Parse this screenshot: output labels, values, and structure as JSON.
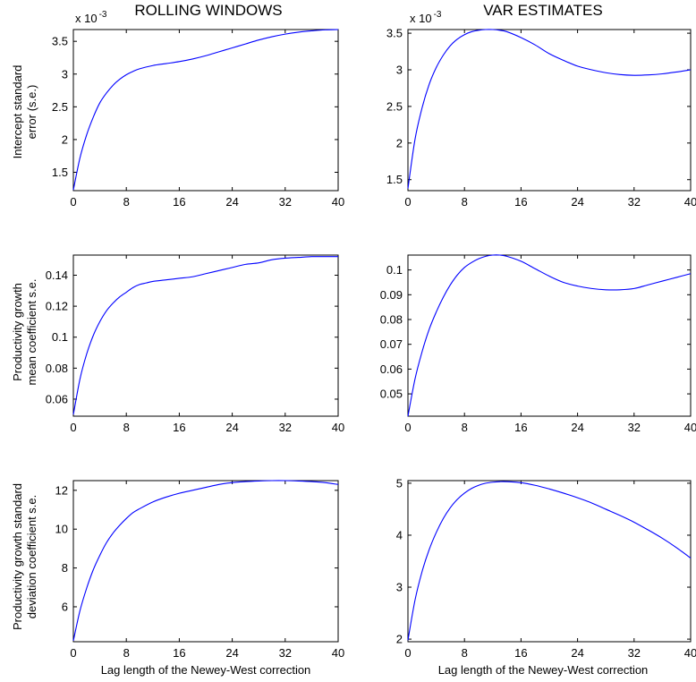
{
  "column_titles": [
    "ROLLING WINDOWS",
    "VAR ESTIMATES"
  ],
  "row_ylabels": [
    [
      "Intercept standard",
      "error (s.e.)"
    ],
    [
      "Productivity growth",
      "mean coefficient s.e."
    ],
    [
      "Productivity growth standard",
      "deviation coefficient s.e."
    ]
  ],
  "xlabel": "Lag length of the Newey-West correction",
  "chart_data": [
    {
      "type": "line",
      "title": "ROLLING WINDOWS",
      "ylabel": "Intercept standard error (s.e.)",
      "xlim": [
        0,
        40
      ],
      "ylim": [
        1.22,
        3.68
      ],
      "exponent_label": "x 10 -3",
      "xticks": [
        "0",
        "8",
        "16",
        "24",
        "32",
        "40"
      ],
      "yticks": [
        {
          "v": 1.5,
          "t": "1.5"
        },
        {
          "v": 2,
          "t": "2"
        },
        {
          "v": 2.5,
          "t": "2.5"
        },
        {
          "v": 3,
          "t": "3"
        },
        {
          "v": 3.5,
          "t": "3.5"
        }
      ],
      "x": [
        0,
        1,
        2,
        3,
        4,
        5,
        6,
        7,
        8,
        9,
        10,
        12,
        14,
        16,
        18,
        20,
        22,
        24,
        26,
        28,
        30,
        32,
        34,
        36,
        38,
        40
      ],
      "y": [
        1.23,
        1.72,
        2.07,
        2.34,
        2.56,
        2.71,
        2.83,
        2.92,
        2.99,
        3.04,
        3.08,
        3.13,
        3.16,
        3.19,
        3.23,
        3.28,
        3.34,
        3.4,
        3.46,
        3.52,
        3.57,
        3.61,
        3.64,
        3.66,
        3.675,
        3.68
      ]
    },
    {
      "type": "line",
      "title": "VAR ESTIMATES",
      "ylabel": "",
      "xlim": [
        0,
        40
      ],
      "ylim": [
        1.35,
        3.55
      ],
      "exponent_label": "x 10 -3",
      "xticks": [
        "0",
        "8",
        "16",
        "24",
        "32",
        "40"
      ],
      "yticks": [
        {
          "v": 1.5,
          "t": "1.5"
        },
        {
          "v": 2,
          "t": "2"
        },
        {
          "v": 2.5,
          "t": "2.5"
        },
        {
          "v": 3,
          "t": "3"
        },
        {
          "v": 3.5,
          "t": "3.5"
        }
      ],
      "x": [
        0,
        1,
        2,
        3,
        4,
        5,
        6,
        7,
        8,
        9,
        10,
        11,
        12,
        13,
        14,
        16,
        18,
        20,
        22,
        24,
        26,
        28,
        30,
        32,
        34,
        36,
        38,
        40
      ],
      "y": [
        1.38,
        2.05,
        2.48,
        2.8,
        3.03,
        3.2,
        3.33,
        3.42,
        3.48,
        3.52,
        3.54,
        3.55,
        3.55,
        3.54,
        3.52,
        3.44,
        3.34,
        3.22,
        3.13,
        3.05,
        3.0,
        2.96,
        2.935,
        2.925,
        2.93,
        2.945,
        2.97,
        3.0
      ]
    },
    {
      "type": "line",
      "title": "",
      "ylabel": "Productivity growth mean coefficient s.e.",
      "xlim": [
        0,
        40
      ],
      "ylim": [
        0.049,
        0.153
      ],
      "exponent_label": "",
      "xticks": [
        "0",
        "8",
        "16",
        "24",
        "32",
        "40"
      ],
      "yticks": [
        {
          "v": 0.06,
          "t": "0.06"
        },
        {
          "v": 0.08,
          "t": "0.08"
        },
        {
          "v": 0.1,
          "t": "0.1"
        },
        {
          "v": 0.12,
          "t": "0.12"
        },
        {
          "v": 0.14,
          "t": "0.14"
        }
      ],
      "x": [
        0,
        1,
        2,
        3,
        4,
        5,
        6,
        7,
        8,
        9,
        10,
        11,
        12,
        14,
        16,
        18,
        20,
        22,
        24,
        26,
        28,
        30,
        32,
        34,
        36,
        38,
        40
      ],
      "y": [
        0.05,
        0.073,
        0.089,
        0.101,
        0.11,
        0.117,
        0.122,
        0.126,
        0.129,
        0.132,
        0.134,
        0.135,
        0.136,
        0.137,
        0.138,
        0.139,
        0.141,
        0.143,
        0.145,
        0.147,
        0.148,
        0.15,
        0.151,
        0.1515,
        0.152,
        0.152,
        0.152
      ]
    },
    {
      "type": "line",
      "title": "",
      "ylabel": "",
      "xlim": [
        0,
        40
      ],
      "ylim": [
        0.041,
        0.106
      ],
      "exponent_label": "",
      "xticks": [
        "0",
        "8",
        "16",
        "24",
        "32",
        "40"
      ],
      "yticks": [
        {
          "v": 0.05,
          "t": "0.05"
        },
        {
          "v": 0.06,
          "t": "0.06"
        },
        {
          "v": 0.07,
          "t": "0.07"
        },
        {
          "v": 0.08,
          "t": "0.08"
        },
        {
          "v": 0.09,
          "t": "0.09"
        },
        {
          "v": 0.1,
          "t": "0.1"
        }
      ],
      "x": [
        0,
        1,
        2,
        3,
        4,
        5,
        6,
        7,
        8,
        9,
        10,
        11,
        12,
        13,
        14,
        16,
        18,
        20,
        22,
        24,
        26,
        28,
        30,
        32,
        34,
        36,
        38,
        40
      ],
      "y": [
        0.041,
        0.056,
        0.067,
        0.076,
        0.083,
        0.089,
        0.094,
        0.098,
        0.101,
        0.103,
        0.1045,
        0.1055,
        0.106,
        0.106,
        0.1055,
        0.1035,
        0.1005,
        0.0975,
        0.095,
        0.0935,
        0.0925,
        0.092,
        0.092,
        0.0925,
        0.094,
        0.0955,
        0.097,
        0.0985
      ]
    },
    {
      "type": "line",
      "title": "",
      "ylabel": "Productivity growth standard deviation coefficient s.e.",
      "xlim": [
        0,
        40
      ],
      "ylim": [
        4.2,
        12.5
      ],
      "exponent_label": "",
      "xticks": [
        "0",
        "8",
        "16",
        "24",
        "32",
        "40"
      ],
      "yticks": [
        {
          "v": 6,
          "t": "6"
        },
        {
          "v": 8,
          "t": "8"
        },
        {
          "v": 10,
          "t": "10"
        },
        {
          "v": 12,
          "t": "12"
        }
      ],
      "x": [
        0,
        1,
        2,
        3,
        4,
        5,
        6,
        7,
        8,
        9,
        10,
        12,
        14,
        16,
        18,
        20,
        22,
        24,
        26,
        28,
        30,
        32,
        34,
        36,
        38,
        40
      ],
      "y": [
        4.25,
        5.8,
        6.95,
        7.9,
        8.65,
        9.3,
        9.8,
        10.2,
        10.55,
        10.85,
        11.05,
        11.4,
        11.65,
        11.85,
        12.0,
        12.15,
        12.3,
        12.4,
        12.45,
        12.48,
        12.5,
        12.5,
        12.48,
        12.45,
        12.4,
        12.3
      ]
    },
    {
      "type": "line",
      "title": "",
      "ylabel": "",
      "xlim": [
        0,
        40
      ],
      "ylim": [
        1.95,
        5.05
      ],
      "exponent_label": "",
      "xticks": [
        "0",
        "8",
        "16",
        "24",
        "32",
        "40"
      ],
      "yticks": [
        {
          "v": 2,
          "t": "2"
        },
        {
          "v": 3,
          "t": "3"
        },
        {
          "v": 4,
          "t": "4"
        },
        {
          "v": 5,
          "t": "5"
        }
      ],
      "x": [
        0,
        1,
        2,
        3,
        4,
        5,
        6,
        7,
        8,
        9,
        10,
        11,
        12,
        13,
        14,
        16,
        18,
        20,
        22,
        24,
        26,
        28,
        30,
        32,
        34,
        36,
        38,
        40
      ],
      "y": [
        1.98,
        2.75,
        3.3,
        3.72,
        4.05,
        4.32,
        4.53,
        4.69,
        4.81,
        4.9,
        4.96,
        5.0,
        5.02,
        5.03,
        5.03,
        5.01,
        4.96,
        4.89,
        4.81,
        4.72,
        4.62,
        4.5,
        4.38,
        4.25,
        4.1,
        3.94,
        3.76,
        3.56
      ]
    }
  ]
}
